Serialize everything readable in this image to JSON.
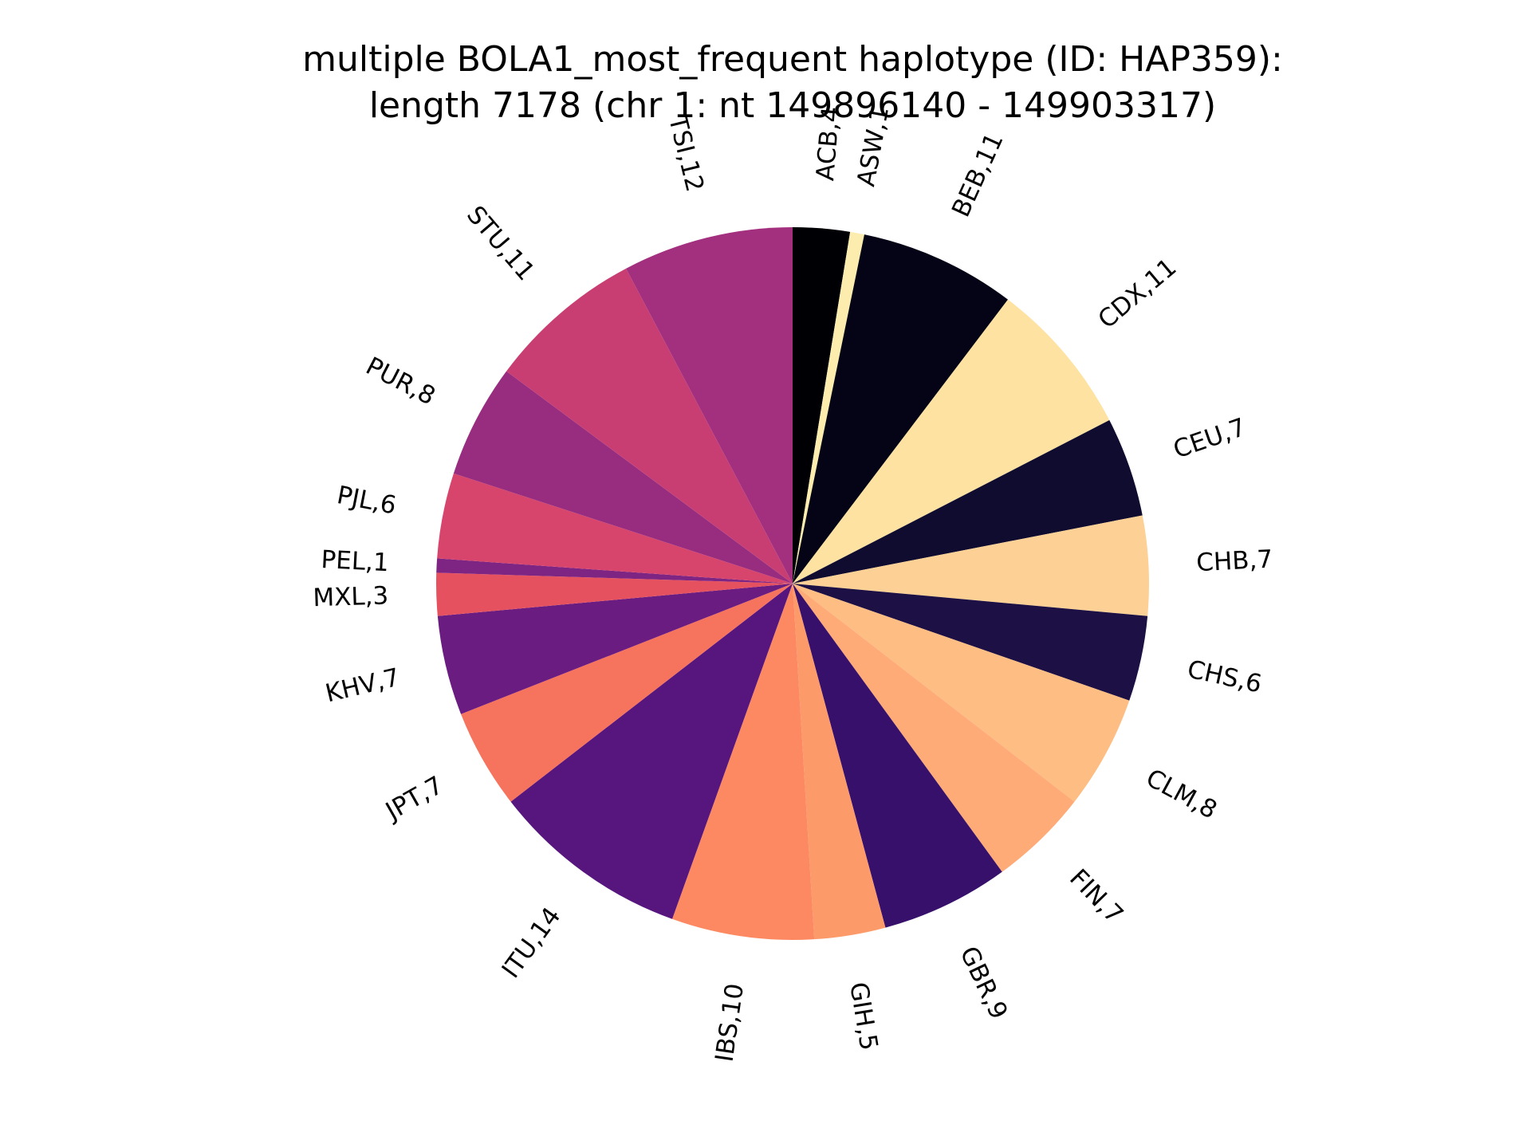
{
  "chart_data": {
    "type": "pie",
    "title_lines": [
      "multiple BOLA1_most_frequent haplotype (ID: HAP359):",
      "length 7178 (chr 1: nt 149896140 - 149903317)"
    ],
    "start_angle": "top",
    "direction": "clockwise",
    "slices": [
      {
        "name": "ACB",
        "value": 4,
        "label": "ACB,4",
        "color": "#000004"
      },
      {
        "name": "ASW",
        "value": 1,
        "label": "ASW,1",
        "color": "#fcecae"
      },
      {
        "name": "BEB",
        "value": 11,
        "label": "BEB,11",
        "color": "#050416"
      },
      {
        "name": "CDX",
        "value": 11,
        "label": "CDX,11",
        "color": "#fde2a2"
      },
      {
        "name": "CEU",
        "value": 7,
        "label": "CEU,7",
        "color": "#100c2f"
      },
      {
        "name": "CHB",
        "value": 7,
        "label": "CHB,7",
        "color": "#fdd195"
      },
      {
        "name": "CHS",
        "value": 6,
        "label": "CHS,6",
        "color": "#1c1044"
      },
      {
        "name": "CLM",
        "value": 8,
        "label": "CLM,8",
        "color": "#febd82"
      },
      {
        "name": "FIN",
        "value": 7,
        "label": "FIN,7",
        "color": "#feab78"
      },
      {
        "name": "GBR",
        "value": 9,
        "label": "GBR,9",
        "color": "#36106b"
      },
      {
        "name": "GIH",
        "value": 5,
        "label": "GIH,5",
        "color": "#fd9a6a"
      },
      {
        "name": "IBS",
        "value": 10,
        "label": "IBS,10",
        "color": "#fc8961"
      },
      {
        "name": "ITU",
        "value": 14,
        "label": "ITU,14",
        "color": "#57157e"
      },
      {
        "name": "JPT",
        "value": 7,
        "label": "JPT,7",
        "color": "#f6735e"
      },
      {
        "name": "KHV",
        "value": 7,
        "label": "KHV,7",
        "color": "#6a1c81"
      },
      {
        "name": "MXL",
        "value": 3,
        "label": "MXL,3",
        "color": "#e5515e"
      },
      {
        "name": "PEL",
        "value": 1,
        "label": "PEL,1",
        "color": "#7e2482"
      },
      {
        "name": "PJL",
        "value": 6,
        "label": "PJL,6",
        "color": "#d8456c"
      },
      {
        "name": "PUR",
        "value": 8,
        "label": "PUR,8",
        "color": "#982d80"
      },
      {
        "name": "STU",
        "value": 11,
        "label": "STU,11",
        "color": "#c83e73"
      },
      {
        "name": "TSI",
        "value": 12,
        "label": "TSI,12",
        "color": "#a3307e"
      }
    ]
  }
}
